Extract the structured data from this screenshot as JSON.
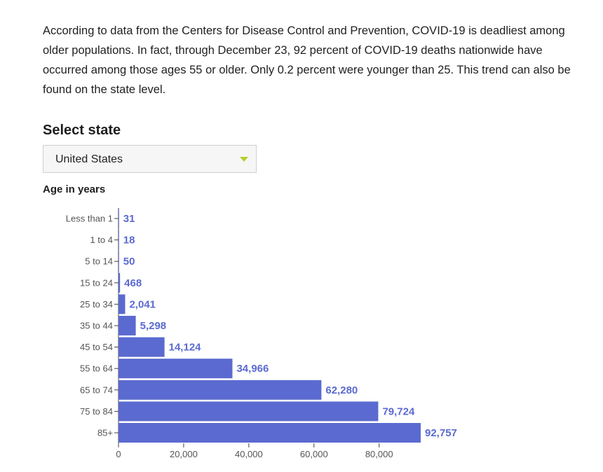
{
  "intro_text": "According to data from the Centers for Disease Control and Prevention, COVID-19 is deadliest among older populations. In fact, through December 23, 92 percent of COVID-19 deaths nationwide have occurred among those ages 55 or older. Only 0.2 percent were younger than 25. This trend can also be found on the state level.",
  "select": {
    "heading": "Select state",
    "value": "United States",
    "icon": "chevron-down-icon"
  },
  "colors": {
    "bar": "#5b6ad0",
    "label": "#5b6ad0",
    "caret": "#b4cf2c"
  },
  "chart_data": {
    "type": "bar",
    "orientation": "horizontal",
    "ylabel": "Age in years",
    "categories": [
      "Less than 1",
      "1 to 4",
      "5 to 14",
      "15 to 24",
      "25 to 34",
      "35 to 44",
      "45 to 54",
      "55 to 64",
      "65 to 74",
      "75 to 84",
      "85+"
    ],
    "values": [
      31,
      18,
      50,
      468,
      2041,
      5298,
      14124,
      34966,
      62280,
      79724,
      92757
    ],
    "value_labels": [
      "31",
      "18",
      "50",
      "468",
      "2,041",
      "5,298",
      "14,124",
      "34,966",
      "62,280",
      "79,724",
      "92,757"
    ],
    "x_ticks": [
      0,
      20000,
      40000,
      60000,
      80000
    ],
    "x_tick_labels": [
      "0",
      "20,000",
      "40,000",
      "60,000",
      "80,000"
    ],
    "xlim": [
      0,
      92757
    ],
    "grid": false,
    "legend": "none"
  }
}
